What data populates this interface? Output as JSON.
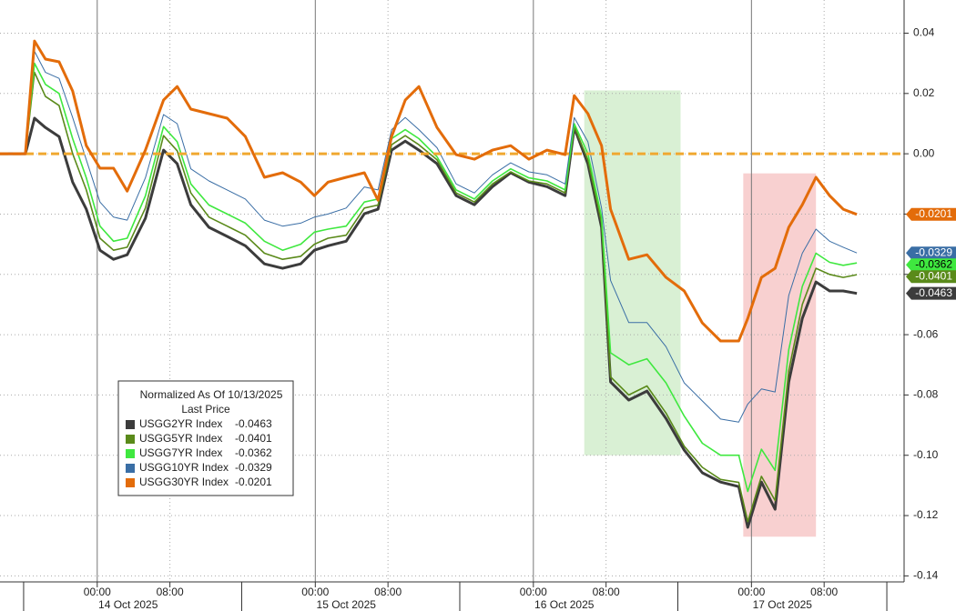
{
  "chart_data": {
    "type": "line",
    "legend_title": "Normalized As Of 10/13/2025",
    "legend_subtitle": "Last Price",
    "x": [
      -10.7,
      -7.9,
      -6.9,
      -5.7,
      -4.2,
      -2.7,
      -1.2,
      0.3,
      1.8,
      3.3,
      5.3,
      7.3,
      8.8,
      10.3,
      12.3,
      14.3,
      16.3,
      18.4,
      20.4,
      22.4,
      23.9,
      25.4,
      27.4,
      29.4,
      30.9,
      32.4,
      33.9,
      35.4,
      37.4,
      39.5,
      41.5,
      43.5,
      45.5,
      47.5,
      49.5,
      51.5,
      52.5,
      54.0,
      55.5,
      56.5,
      58.5,
      60.5,
      62.6,
      64.6,
      66.6,
      68.6,
      70.6,
      71.6,
      73.1,
      74.6,
      76.1,
      77.6,
      79.1,
      80.6,
      82.1,
      83.6
    ],
    "series": [
      {
        "name": "USGG2YR Index",
        "color": "#3c3c3c",
        "last": -0.0463,
        "values": [
          0,
          0,
          0.0118,
          0.0087,
          0.0057,
          -0.0094,
          -0.0184,
          -0.032,
          -0.035,
          -0.0335,
          -0.0214,
          0.0012,
          -0.0033,
          -0.0169,
          -0.0244,
          -0.0274,
          -0.0305,
          -0.0365,
          -0.038,
          -0.0365,
          -0.032,
          -0.0305,
          -0.029,
          -0.0199,
          -0.0184,
          0.0012,
          0.0042,
          0.0012,
          -0.0033,
          -0.0139,
          -0.0169,
          -0.0109,
          -0.0063,
          -0.0094,
          -0.0109,
          -0.0139,
          0.0087,
          -0.0033,
          -0.0244,
          -0.0757,
          -0.0817,
          -0.0787,
          -0.0878,
          -0.0983,
          -0.1058,
          -0.1089,
          -0.1104,
          -0.1239,
          -0.1089,
          -0.1179,
          -0.0757,
          -0.0546,
          -0.0425,
          -0.0455,
          -0.0455,
          -0.0463
        ]
      },
      {
        "name": "USGG5YR Index",
        "color": "#5a8a1a",
        "last": -0.0401,
        "values": [
          0,
          0,
          0.027,
          0.019,
          0.016,
          0,
          -0.012,
          -0.028,
          -0.032,
          -0.031,
          -0.018,
          0.006,
          0.001,
          -0.013,
          -0.021,
          -0.024,
          -0.027,
          -0.033,
          -0.035,
          -0.034,
          -0.03,
          -0.028,
          -0.027,
          -0.018,
          -0.017,
          0.003,
          0.006,
          0.003,
          -0.002,
          -0.013,
          -0.016,
          -0.01,
          -0.006,
          -0.009,
          -0.01,
          -0.013,
          0.009,
          -0.002,
          -0.023,
          -0.074,
          -0.08,
          -0.077,
          -0.086,
          -0.097,
          -0.104,
          -0.108,
          -0.109,
          -0.122,
          -0.107,
          -0.115,
          -0.072,
          -0.05,
          -0.038,
          -0.04,
          -0.041,
          -0.0401
        ]
      },
      {
        "name": "USGG7YR Index",
        "color": "#3fe83f",
        "last": -0.0362,
        "values": [
          0,
          0,
          0.03,
          0.023,
          0.02,
          0.005,
          -0.008,
          -0.024,
          -0.029,
          -0.028,
          -0.014,
          0.009,
          0.004,
          -0.01,
          -0.017,
          -0.02,
          -0.023,
          -0.029,
          -0.032,
          -0.03,
          -0.026,
          -0.025,
          -0.024,
          -0.016,
          -0.015,
          0.005,
          0.008,
          0.005,
          -0.001,
          -0.012,
          -0.015,
          -0.009,
          -0.005,
          -0.008,
          -0.009,
          -0.012,
          0.01,
          0,
          -0.021,
          -0.066,
          -0.07,
          -0.068,
          -0.076,
          -0.087,
          -0.096,
          -0.1,
          -0.1,
          -0.112,
          -0.098,
          -0.105,
          -0.065,
          -0.044,
          -0.033,
          -0.036,
          -0.037,
          -0.0362
        ]
      },
      {
        "name": "USGG10YR Index",
        "color": "#3a6ea5",
        "last": -0.0329,
        "values": [
          0,
          0,
          0.034,
          0.027,
          0.025,
          0.012,
          -0.002,
          -0.016,
          -0.021,
          -0.022,
          -0.008,
          0.013,
          0.01,
          -0.005,
          -0.009,
          -0.012,
          -0.015,
          -0.022,
          -0.024,
          -0.023,
          -0.021,
          -0.02,
          -0.018,
          -0.011,
          -0.012,
          0.008,
          0.012,
          0.008,
          0.002,
          -0.01,
          -0.013,
          -0.007,
          -0.003,
          -0.006,
          -0.007,
          -0.01,
          0.012,
          0.004,
          -0.018,
          -0.042,
          -0.056,
          -0.056,
          -0.064,
          -0.076,
          -0.082,
          -0.088,
          -0.089,
          -0.083,
          -0.078,
          -0.079,
          -0.047,
          -0.033,
          -0.025,
          -0.029,
          -0.031,
          -0.0329
        ]
      },
      {
        "name": "USGG30YR Index",
        "color": "#e36c0a",
        "last": -0.0201,
        "values": [
          0,
          0,
          0.0374,
          0.0314,
          0.0305,
          0.0208,
          0.0027,
          -0.0048,
          -0.0048,
          -0.0124,
          0.0012,
          0.0178,
          0.0223,
          0.0148,
          0.0133,
          0.0118,
          0.0057,
          -0.0078,
          -0.0063,
          -0.0094,
          -0.0139,
          -0.0094,
          -0.0078,
          -0.0063,
          -0.0154,
          0.0057,
          0.0178,
          0.0223,
          0.0087,
          -0.0003,
          -0.0018,
          0.0012,
          0.0027,
          -0.0018,
          0.0012,
          -0.0003,
          0.0193,
          0.0133,
          0.0027,
          -0.0184,
          -0.035,
          -0.0335,
          -0.041,
          -0.0455,
          -0.0561,
          -0.0621,
          -0.0621,
          -0.0546,
          -0.041,
          -0.038,
          -0.0244,
          -0.0169,
          -0.0078,
          -0.0139,
          -0.0184,
          -0.0201
        ]
      }
    ],
    "xlim": [
      -10.7,
      88.8
    ],
    "ylim": [
      -0.142,
      0.051
    ],
    "yticks": [
      0.04,
      0.02,
      {
        "value": 0,
        "label": "0.00"
      },
      -0.02,
      -0.04,
      -0.06,
      -0.08,
      {
        "value": -0.1,
        "label": "-0.10"
      },
      -0.12,
      -0.14
    ],
    "xticks": [
      {
        "value": 0,
        "label": "00:00"
      },
      {
        "value": 8,
        "label": "08:00"
      },
      {
        "value": 24,
        "label": "00:00"
      },
      {
        "value": 32,
        "label": "08:00"
      },
      {
        "value": 48,
        "label": "00:00"
      },
      {
        "value": 56,
        "label": "08:00"
      },
      {
        "value": 72,
        "label": "00:00"
      },
      {
        "value": 80,
        "label": "08:00"
      }
    ],
    "date_ticks": [
      {
        "value": 0,
        "label": "14 Oct 2025"
      },
      {
        "value": 24,
        "label": "15 Oct 2025"
      },
      {
        "value": 48,
        "label": "16 Oct 2025"
      },
      {
        "value": 72,
        "label": "17 Oct 2025"
      }
    ],
    "reference_line": {
      "value": 0,
      "color": "#f0a830"
    },
    "highlights": [
      {
        "x": [
          53.6,
          64.2
        ],
        "y": [
          -0.1,
          0.021
        ],
        "color": "#b9e4b0"
      },
      {
        "x": [
          71.1,
          79.1
        ],
        "y": [
          -0.127,
          -0.0065
        ],
        "color": "#f2a9a9"
      }
    ],
    "grid": true
  }
}
